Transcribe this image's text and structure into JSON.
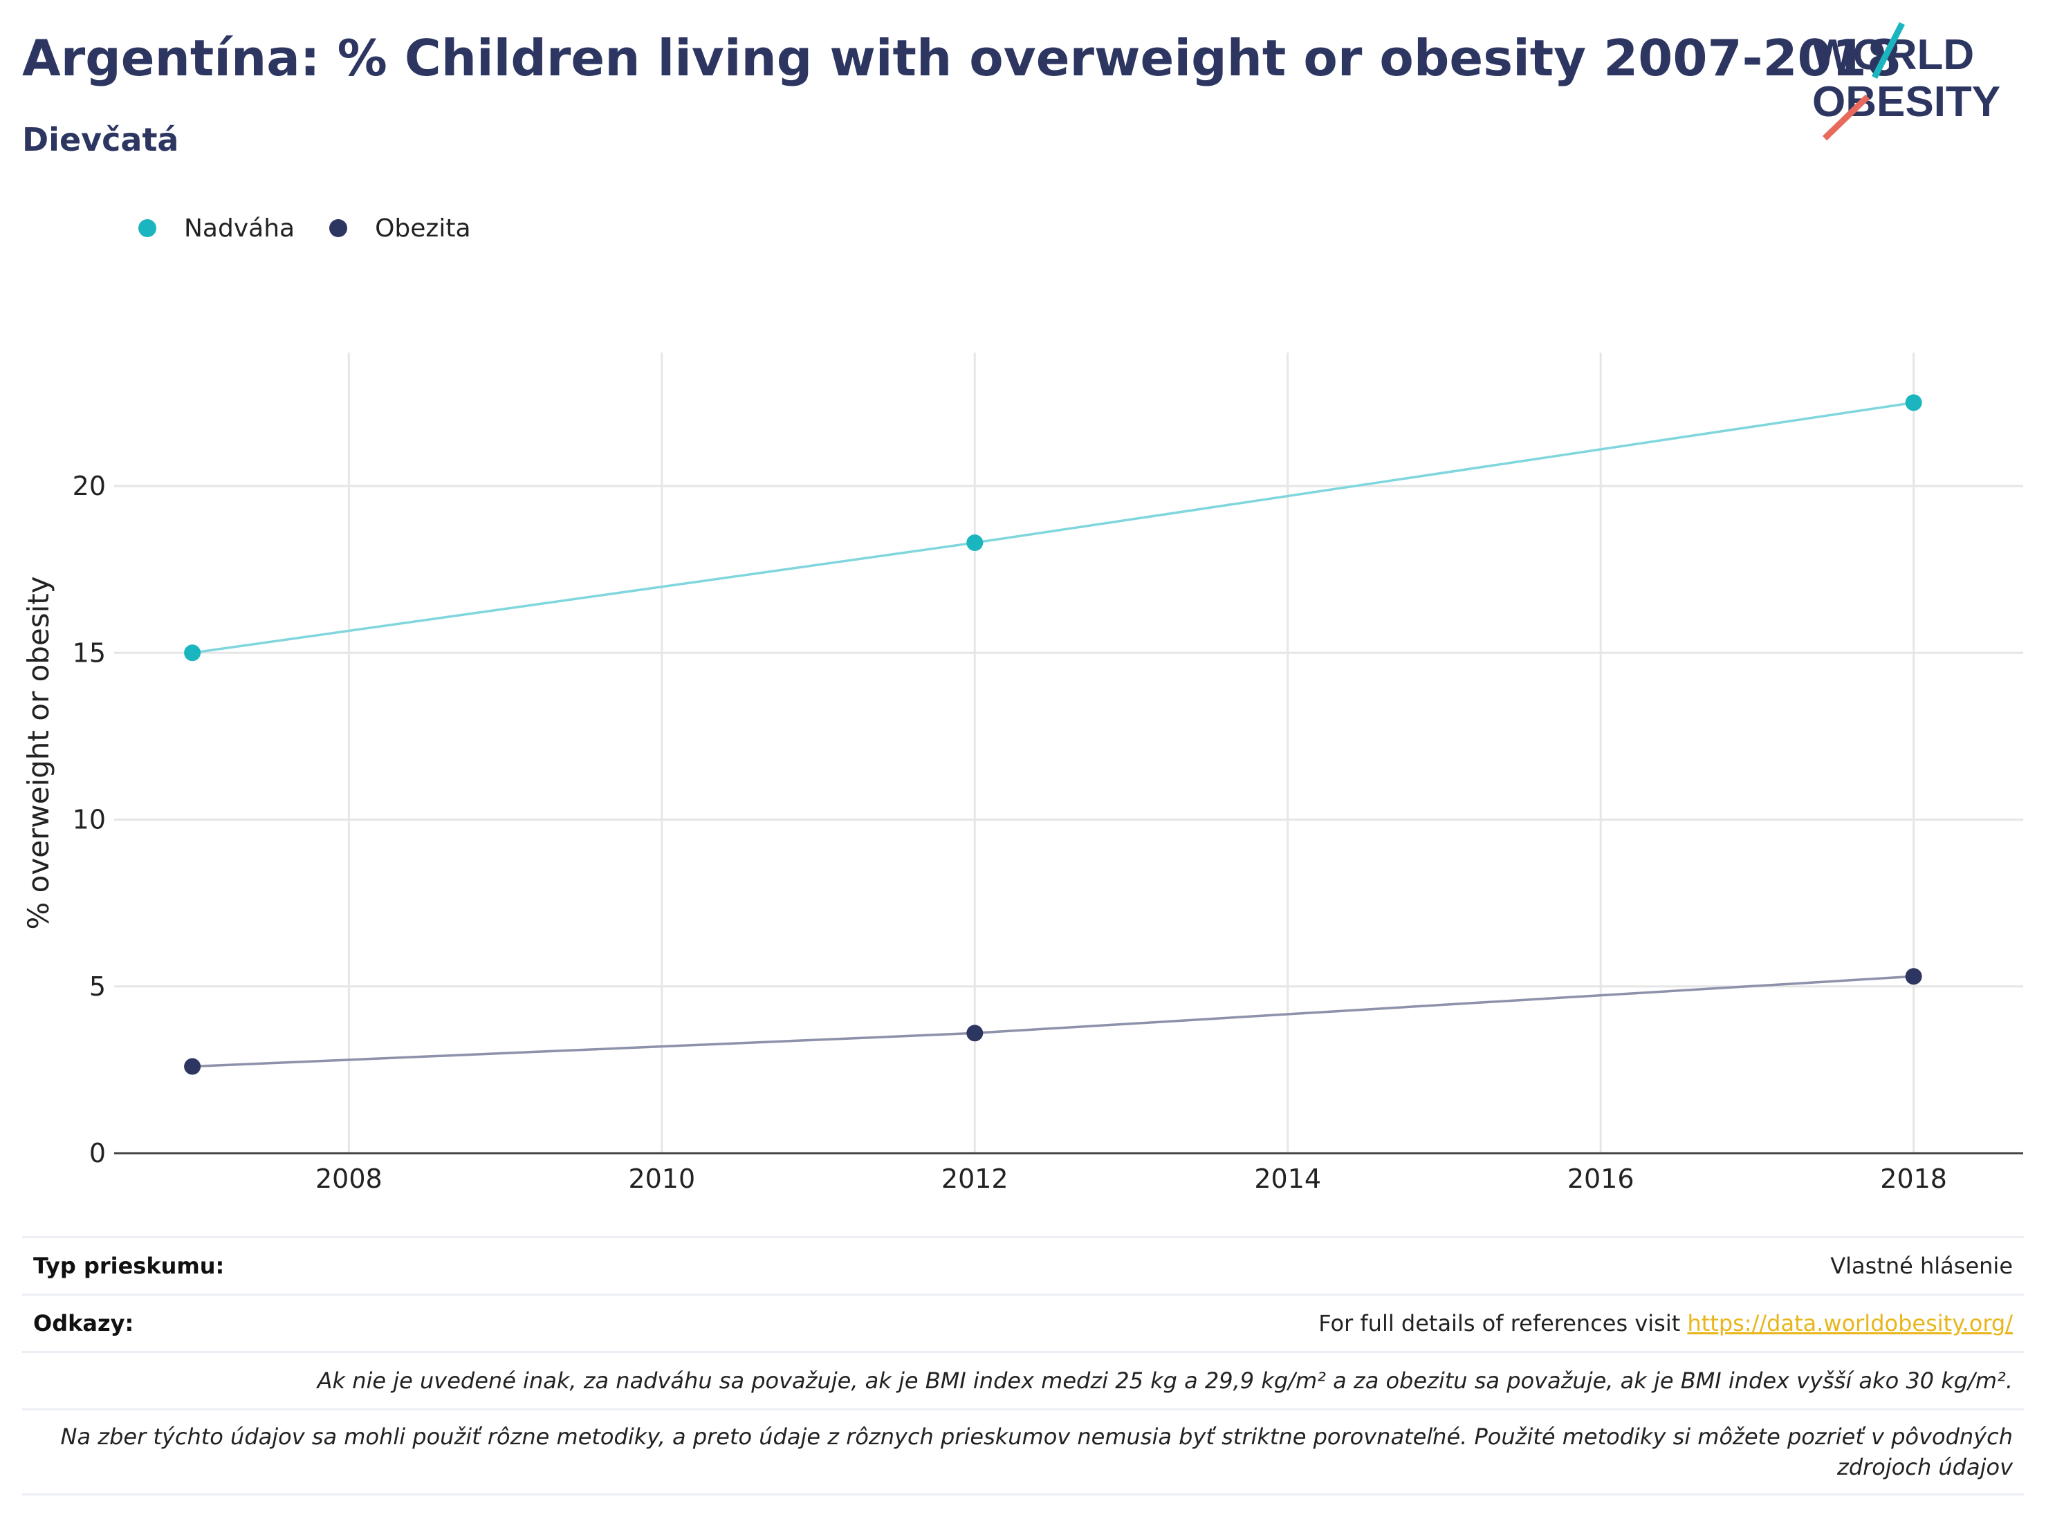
{
  "header": {
    "title": "Argentína: % Children living with overweight or obesity 2007-2018",
    "subtitle": "Dievčatá"
  },
  "logo": {
    "line1": "WORLD",
    "line2": "OBESITY"
  },
  "colors": {
    "nadvaha": "#1bb5bf",
    "obezita": "#2d3561",
    "title": "#2d3561",
    "link": "#e8b51a",
    "grid": "#e6e6e6"
  },
  "chart_data": {
    "type": "line",
    "title": "",
    "xlabel": "",
    "ylabel": "% overweight or obesity",
    "xlim": [
      2006.5,
      2018.7
    ],
    "ylim": [
      0,
      24
    ],
    "x_ticks": [
      "2008",
      "2010",
      "2012",
      "2014",
      "2016",
      "2018"
    ],
    "y_ticks": [
      "0",
      "5",
      "10",
      "15",
      "20"
    ],
    "grid": true,
    "legend_position": "top-left",
    "series": [
      {
        "name": "Nadváha",
        "x": [
          2007,
          2012,
          2018
        ],
        "values": [
          15.0,
          18.3,
          22.5
        ]
      },
      {
        "name": "Obezita",
        "x": [
          2007,
          2012,
          2018
        ],
        "values": [
          2.6,
          3.6,
          5.3
        ]
      }
    ]
  },
  "footer": {
    "survey_type_label": "Typ prieskumu:",
    "survey_type_value": "Vlastné hlásenie",
    "references_label": "Odkazy:",
    "references_text": "For full details of references visit ",
    "references_link": "https://data.worldobesity.org/",
    "note_bmi": "Ak nie je uvedené inak, za nadváhu sa považuje, ak je BMI index medzi 25 kg a 29,9 kg/m² a za obezitu sa považuje, ak je BMI index vyšší ako 30 kg/m².",
    "note_methods": "Na zber týchto údajov sa mohli použiť rôzne metodiky, a preto údaje z rôznych prieskumov nemusia byť striktne porovnateľné. Použité metodiky si môžete pozrieť v pôvodných zdrojoch údajov"
  }
}
